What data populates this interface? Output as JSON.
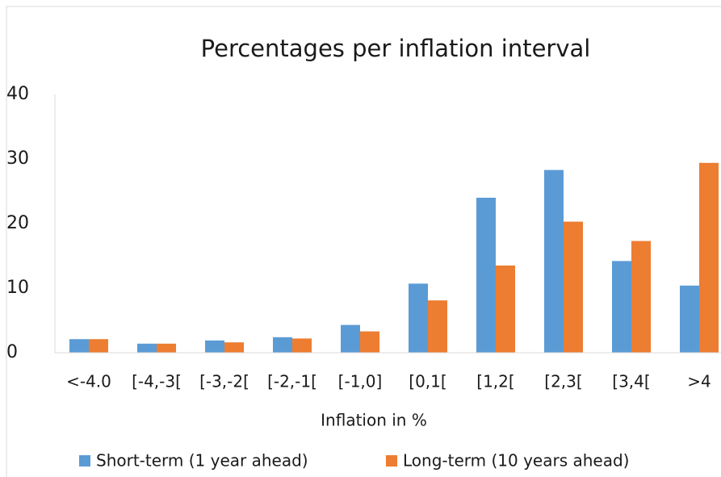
{
  "chart_data": {
    "type": "bar",
    "title": "Percentages per inflation interval",
    "x_label": "Inflation in %",
    "categories": [
      "<-4.0",
      "[-4,-3[",
      "[-3,-2[",
      "[-2,-1[",
      "[-1,0]",
      "[0,1[",
      "[1,2[",
      "[2,3[",
      "[3,4[",
      ">4"
    ],
    "series": [
      {
        "name": "Short-term (1 year ahead)",
        "color": "#5b9bd5",
        "values": [
          2.1,
          1.4,
          1.9,
          2.4,
          4.3,
          10.7,
          24.0,
          28.3,
          14.2,
          10.4
        ]
      },
      {
        "name": "Long-term (10 years ahead)",
        "color": "#ed7d31",
        "values": [
          2.1,
          1.4,
          1.6,
          2.2,
          3.3,
          8.1,
          13.5,
          20.3,
          17.3,
          29.4
        ]
      }
    ],
    "ylim": [
      0,
      40
    ],
    "yticks": [
      0,
      10,
      20,
      30,
      40
    ],
    "grid": false
  }
}
